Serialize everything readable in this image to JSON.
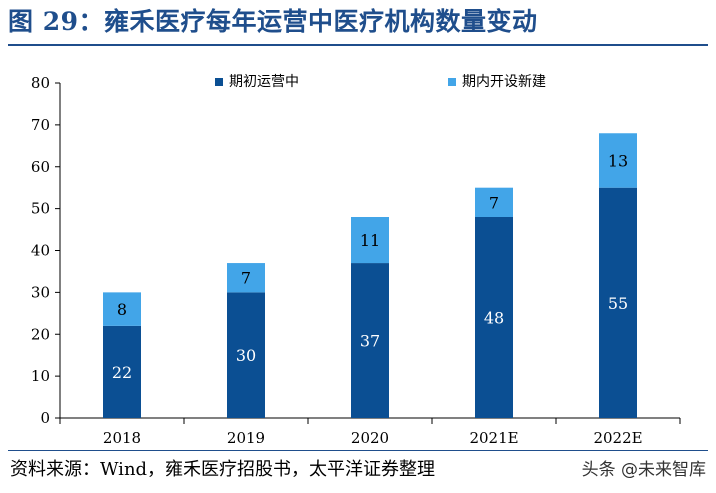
{
  "header": {
    "title": "图 29：雍禾医疗每年运营中医疗机构数量变动"
  },
  "footer": {
    "source": "资料来源：Wind，雍禾医疗招股书，太平洋证券整理",
    "watermark": "头条 @未来智库"
  },
  "colors": {
    "title": "#1f4e8c",
    "base_series": "#0b4f93",
    "new_series": "#42a5e8"
  },
  "chart_data": {
    "type": "bar",
    "stacked": true,
    "categories": [
      "2018",
      "2019",
      "2020",
      "2021E",
      "2022E"
    ],
    "series": [
      {
        "name": "期初运营中",
        "values": [
          22,
          30,
          37,
          48,
          55
        ],
        "color": "#0b4f93"
      },
      {
        "name": "期内开设新建",
        "values": [
          8,
          7,
          11,
          7,
          13
        ],
        "color": "#42a5e8"
      }
    ],
    "yticks": [
      "0",
      "10",
      "20",
      "30",
      "40",
      "50",
      "60",
      "70",
      "80"
    ],
    "ylim": [
      0,
      80
    ],
    "grid": false,
    "legend": "top"
  }
}
